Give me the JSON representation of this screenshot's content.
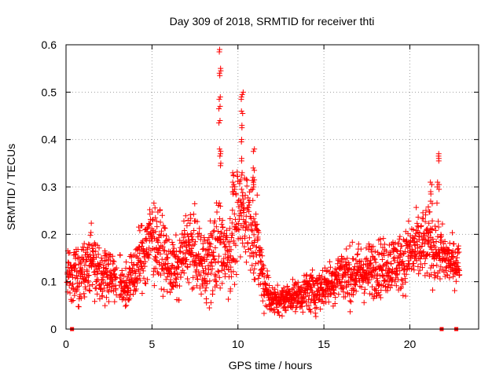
{
  "chart_data": {
    "type": "scatter",
    "title": "Day 309 of 2018, SRMTID for receiver thti",
    "xlabel": "GPS time / hours",
    "ylabel": "SRMTID / TECUs",
    "xlim": [
      0,
      24
    ],
    "ylim": [
      0,
      0.6
    ],
    "xticks": [
      0,
      5,
      10,
      15,
      20
    ],
    "yticks": [
      0,
      0.1,
      0.2,
      0.3,
      0.4,
      0.5,
      0.6
    ],
    "grid": true,
    "marker": "+",
    "series_color": "#ff0000",
    "trend": {
      "x": [
        0,
        0.5,
        1.0,
        1.5,
        2.0,
        2.5,
        3.0,
        3.5,
        4.0,
        4.5,
        5.0,
        5.5,
        6.0,
        6.5,
        7.0,
        7.5,
        8.0,
        8.5,
        9.0,
        9.5,
        10.0,
        10.5,
        11.0,
        11.5,
        12.0,
        12.5,
        13.0,
        13.5,
        14.0,
        14.5,
        15.0,
        15.5,
        16.0,
        16.5,
        17.0,
        17.5,
        18.0,
        18.5,
        19.0,
        19.5,
        20.0,
        20.5,
        21.0,
        21.5,
        22.0,
        22.5,
        22.9
      ],
      "y": [
        0.11,
        0.12,
        0.13,
        0.15,
        0.12,
        0.12,
        0.1,
        0.09,
        0.12,
        0.16,
        0.2,
        0.17,
        0.13,
        0.12,
        0.18,
        0.16,
        0.13,
        0.15,
        0.18,
        0.16,
        0.23,
        0.25,
        0.2,
        0.1,
        0.06,
        0.06,
        0.07,
        0.07,
        0.08,
        0.08,
        0.09,
        0.1,
        0.12,
        0.11,
        0.12,
        0.12,
        0.13,
        0.13,
        0.14,
        0.14,
        0.16,
        0.17,
        0.18,
        0.17,
        0.15,
        0.14,
        0.14
      ],
      "spread": [
        0.04,
        0.04,
        0.05,
        0.05,
        0.04,
        0.04,
        0.03,
        0.03,
        0.04,
        0.05,
        0.06,
        0.05,
        0.04,
        0.04,
        0.05,
        0.05,
        0.05,
        0.06,
        0.07,
        0.06,
        0.07,
        0.07,
        0.06,
        0.04,
        0.02,
        0.02,
        0.02,
        0.02,
        0.03,
        0.03,
        0.03,
        0.03,
        0.04,
        0.04,
        0.04,
        0.04,
        0.04,
        0.04,
        0.04,
        0.04,
        0.05,
        0.05,
        0.05,
        0.05,
        0.04,
        0.03,
        0.03
      ],
      "gap": [
        2.95,
        3.1
      ]
    },
    "spikes": [
      {
        "x": 8.95,
        "y": [
          0.59,
          0.55,
          0.54,
          0.49,
          0.47,
          0.44,
          0.38,
          0.37,
          0.35
        ]
      },
      {
        "x": 10.25,
        "y": [
          0.5,
          0.49,
          0.46,
          0.43,
          0.4,
          0.36,
          0.33
        ]
      },
      {
        "x": 10.9,
        "y": [
          0.38,
          0.34,
          0.32,
          0.31,
          0.3
        ]
      },
      {
        "x": 9.75,
        "y": [
          0.33,
          0.31,
          0.3,
          0.29
        ]
      },
      {
        "x": 21.65,
        "y": [
          0.37,
          0.36,
          0.31,
          0.3
        ]
      },
      {
        "x": 21.25,
        "y": [
          0.31,
          0.29,
          0.27
        ]
      }
    ],
    "baseline_markers": [
      0.35,
      21.85,
      22.7
    ]
  }
}
